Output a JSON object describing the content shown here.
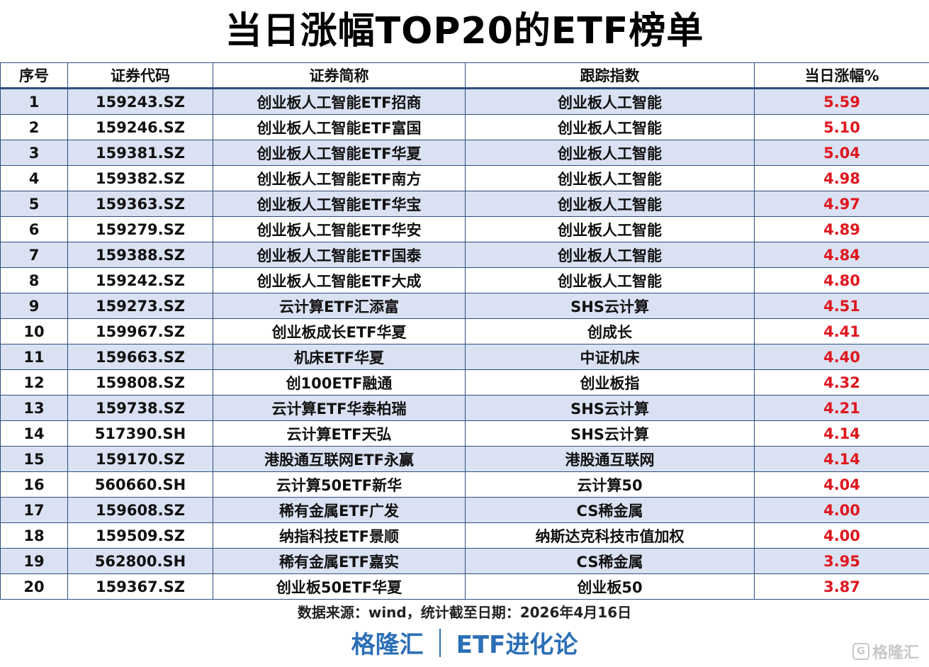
{
  "title": "当日涨幅TOP20的ETF榜单",
  "colors": {
    "header_border": "#2e4f7f",
    "stripe": "#d9e1f2",
    "change": "#e0161e",
    "brand": "#2c6fb7"
  },
  "table": {
    "headers": [
      "序号",
      "证券代码",
      "证券简称",
      "跟踪指数",
      "当日涨幅%"
    ],
    "rows": [
      [
        "1",
        "159243.SZ",
        "创业板人工智能ETF招商",
        "创业板人工智能",
        "5.59"
      ],
      [
        "2",
        "159246.SZ",
        "创业板人工智能ETF富国",
        "创业板人工智能",
        "5.10"
      ],
      [
        "3",
        "159381.SZ",
        "创业板人工智能ETF华夏",
        "创业板人工智能",
        "5.04"
      ],
      [
        "4",
        "159382.SZ",
        "创业板人工智能ETF南方",
        "创业板人工智能",
        "4.98"
      ],
      [
        "5",
        "159363.SZ",
        "创业板人工智能ETF华宝",
        "创业板人工智能",
        "4.97"
      ],
      [
        "6",
        "159279.SZ",
        "创业板人工智能ETF华安",
        "创业板人工智能",
        "4.89"
      ],
      [
        "7",
        "159388.SZ",
        "创业板人工智能ETF国泰",
        "创业板人工智能",
        "4.84"
      ],
      [
        "8",
        "159242.SZ",
        "创业板人工智能ETF大成",
        "创业板人工智能",
        "4.80"
      ],
      [
        "9",
        "159273.SZ",
        "云计算ETF汇添富",
        "SHS云计算",
        "4.51"
      ],
      [
        "10",
        "159967.SZ",
        "创业板成长ETF华夏",
        "创成长",
        "4.41"
      ],
      [
        "11",
        "159663.SZ",
        "机床ETF华夏",
        "中证机床",
        "4.40"
      ],
      [
        "12",
        "159808.SZ",
        "创100ETF融通",
        "创业板指",
        "4.32"
      ],
      [
        "13",
        "159738.SZ",
        "云计算ETF华泰柏瑞",
        "SHS云计算",
        "4.21"
      ],
      [
        "14",
        "517390.SH",
        "云计算ETF天弘",
        "SHS云计算",
        "4.14"
      ],
      [
        "15",
        "159170.SZ",
        "港股通互联网ETF永赢",
        "港股通互联网",
        "4.14"
      ],
      [
        "16",
        "560660.SH",
        "云计算50ETF新华",
        "云计算50",
        "4.04"
      ],
      [
        "17",
        "159608.SZ",
        "稀有金属ETF广发",
        "CS稀金属",
        "4.00"
      ],
      [
        "18",
        "159509.SZ",
        "纳指科技ETF景顺",
        "纳斯达克科技市值加权",
        "4.00"
      ],
      [
        "19",
        "562800.SH",
        "稀有金属ETF嘉实",
        "CS稀金属",
        "3.95"
      ],
      [
        "20",
        "159367.SZ",
        "创业板50ETF华夏",
        "创业板50",
        "3.87"
      ]
    ]
  },
  "source": "数据来源：wind，统计截至日期：2026年4月16日",
  "brand": {
    "left": "格隆汇",
    "right": "ETF进化论"
  },
  "watermark": {
    "icon": "gelonghui-logo-icon",
    "text": "格隆汇",
    "logo_glyph": "G"
  }
}
